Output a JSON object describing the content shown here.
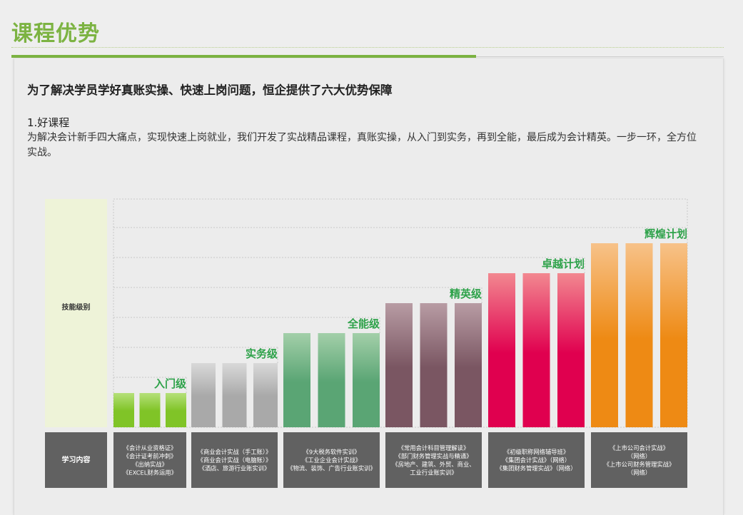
{
  "section": {
    "title": "课程优势"
  },
  "intro": {
    "headline": "为了解决学员学好真账实操、快速上岗问题，恒企提供了六大优势保障",
    "subheading": "1.好课程",
    "paragraph": "为解决会计新手四大痛点，实现快速上岗就业，我们开发了实战精品课程，真账实操，从入门到实务，再到全能，最后成为会计精英。一步一环，全方位实战。"
  },
  "chart_data": {
    "type": "bar",
    "row_labels": {
      "skill": "技能级别",
      "content": "学习内容"
    },
    "y_axis": "none",
    "groups": [
      {
        "level": "入门级",
        "value": 1,
        "bars": 3,
        "color": "#80c427",
        "color_light": "#b5e07a",
        "content": [
          "《会计从业资格证》",
          "《会计证考前冲刺》",
          "《出纳实战》",
          "《EXCEL财务运用》"
        ]
      },
      {
        "level": "实务级",
        "value": 2,
        "bars": 3,
        "color": "#a9a9a9",
        "color_light": "#d9d9d9",
        "content": [
          "《商业会计实战（手工账）》",
          "《商业会计实战（电脑账）》",
          "《酒店、旅游行业账实训》"
        ]
      },
      {
        "level": "全能级",
        "value": 3,
        "bars": 3,
        "color": "#5aa574",
        "color_light": "#a3cfa9",
        "content": [
          "《9大税务软件实训》",
          "《工业企业会计实战》",
          "《物流、装饰、广告行业账实训》"
        ]
      },
      {
        "level": "精英级",
        "value": 4,
        "bars": 3,
        "color": "#7a5662",
        "color_light": "#b89ca4",
        "content": [
          "《常用会计科目管理解读》",
          "《部门财务管理实战与精通》",
          "《房地产、建筑、外贸、商业、",
          "工业行业账实训》"
        ]
      },
      {
        "level": "卓越计划",
        "value": 5,
        "bars": 3,
        "color": "#e0004f",
        "color_light": "#f28890",
        "content": [
          "《初级职称网络辅导班》",
          "《集团会计实战》（网络）",
          "《集团财务管理实战》（网络）"
        ]
      },
      {
        "level": "辉煌计划",
        "value": 6,
        "bars": 3,
        "color": "#ee8a14",
        "color_light": "#f7c289",
        "content": [
          "《上市公司会计实战》",
          "（网络）",
          "《上市公司财务管理实战》",
          "（网络）"
        ]
      }
    ]
  }
}
